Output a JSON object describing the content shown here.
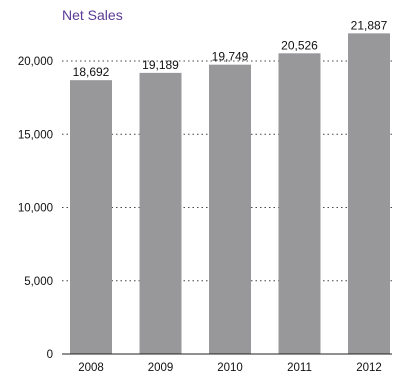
{
  "chart_data": {
    "type": "bar",
    "title": "Net Sales",
    "categories": [
      "2008",
      "2009",
      "2010",
      "2011",
      "2012"
    ],
    "values": [
      18692,
      19189,
      19749,
      20526,
      21887
    ],
    "data_labels": [
      "18,692",
      "19,189",
      "19,749",
      "20,526",
      "21,887"
    ],
    "y_ticks": [
      0,
      5000,
      10000,
      15000,
      20000
    ],
    "y_tick_labels": [
      "0",
      "5,000",
      "10,000",
      "15,000",
      "20,000"
    ],
    "ylim": [
      0,
      22000
    ],
    "xlabel": "",
    "ylabel": "",
    "grid": "dotted horizontal",
    "legend": "none"
  },
  "colors": {
    "bar": "#98989b",
    "title": "#5b3a96",
    "grid": "#444444",
    "axis": "#222222"
  }
}
